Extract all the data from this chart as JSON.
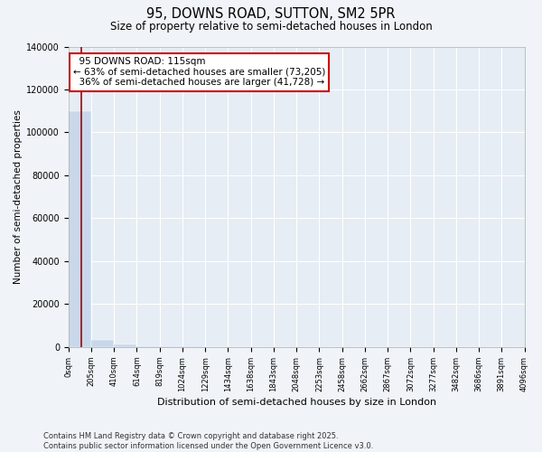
{
  "title": "95, DOWNS ROAD, SUTTON, SM2 5PR",
  "subtitle": "Size of property relative to semi-detached houses in London",
  "xlabel": "Distribution of semi-detached houses by size in London",
  "ylabel": "Number of semi-detached properties",
  "property_size": 115,
  "property_label": "95 DOWNS ROAD: 115sqm",
  "pct_smaller": 63,
  "count_smaller": 73205,
  "pct_larger": 36,
  "count_larger": 41728,
  "bar_color": "#c8d8ea",
  "marker_color": "#aa0000",
  "annotation_box_color": "#cc0000",
  "ylim": [
    0,
    140000
  ],
  "yticks": [
    0,
    20000,
    40000,
    60000,
    80000,
    100000,
    120000,
    140000
  ],
  "bin_edges": [
    0,
    205,
    410,
    614,
    819,
    1024,
    1229,
    1434,
    1638,
    1843,
    2048,
    2253,
    2458,
    2662,
    2867,
    3072,
    3277,
    3482,
    3686,
    3891,
    4096
  ],
  "bin_counts": [
    110000,
    3500,
    1200,
    600,
    350,
    250,
    180,
    140,
    110,
    90,
    75,
    65,
    55,
    48,
    42,
    37,
    32,
    28,
    24,
    20
  ],
  "footer": "Contains HM Land Registry data © Crown copyright and database right 2025.\nContains public sector information licensed under the Open Government Licence v3.0.",
  "background_color": "#f0f4f8",
  "plot_bg_color": "#e6edf4",
  "figsize": [
    6.0,
    5.0
  ],
  "dpi": 100
}
